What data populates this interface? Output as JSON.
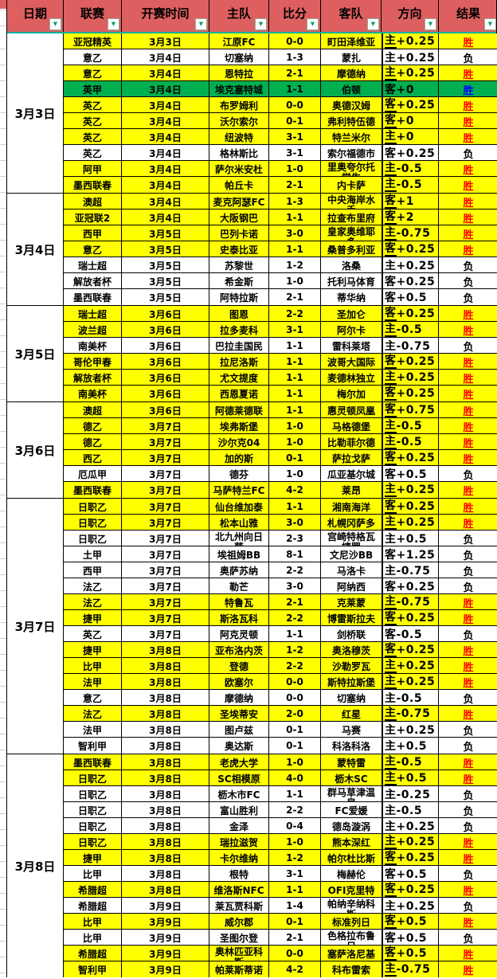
{
  "header": {
    "columns": [
      {
        "key": "date",
        "label": "日期"
      },
      {
        "key": "league",
        "label": "联赛"
      },
      {
        "key": "kickoff-time",
        "label": "开赛时间"
      },
      {
        "key": "home-team",
        "label": "主队"
      },
      {
        "key": "score",
        "label": "比分"
      },
      {
        "key": "away-team",
        "label": "客队"
      },
      {
        "key": "direction",
        "label": "方向"
      },
      {
        "key": "result",
        "label": "结果"
      }
    ]
  },
  "icons": {
    "filter_arrow": "▼"
  },
  "colors": {
    "header_bg": "#de5f5f",
    "win_row_bg": "#ffff00",
    "lose_row_bg": "#ffffff",
    "special_row_bg": "#00b050",
    "win_text": "#ff0000",
    "special_win_text": "#0000ff",
    "lose_text": "#000000",
    "header_divider": "#00b0a0"
  },
  "groups": [
    {
      "date": "3月3日",
      "rows": [
        {
          "league": "亚冠精英",
          "time": "3月3日",
          "home": "江原FC",
          "score": "0-0",
          "away": "町田泽维亚",
          "dir": "主+0.25",
          "result": "胜",
          "bg": "y"
        },
        {
          "league": "意乙",
          "time": "3月4日",
          "home": "切塞纳",
          "score": "1-3",
          "away": "蒙扎",
          "dir": "主+0.25",
          "result": "负",
          "bg": "w"
        },
        {
          "league": "意乙",
          "time": "3月4日",
          "home": "恩特拉",
          "score": "2-1",
          "away": "摩德纳",
          "dir": "主+0.25",
          "result": "胜",
          "bg": "y"
        },
        {
          "league": "英甲",
          "time": "3月4日",
          "home": "埃克塞特城",
          "score": "1-1",
          "away": "伯顿",
          "dir": "客+0",
          "result": "胜",
          "bg": "g"
        },
        {
          "league": "英乙",
          "time": "3月4日",
          "home": "布罗姆利",
          "score": "0-0",
          "away": "奥德汉姆",
          "dir": "客+0.25",
          "result": "胜",
          "bg": "y"
        },
        {
          "league": "英乙",
          "time": "3月4日",
          "home": "沃尔索尔",
          "score": "0-1",
          "away": "弗利特伍德",
          "dir": "客+0",
          "result": "胜",
          "bg": "y"
        },
        {
          "league": "英乙",
          "time": "3月4日",
          "home": "纽波特",
          "score": "3-1",
          "away": "特兰米尔",
          "dir": "主+0",
          "result": "胜",
          "bg": "y"
        },
        {
          "league": "英乙",
          "time": "3月4日",
          "home": "格林斯比",
          "score": "3-1",
          "away": "索尔福德市",
          "dir": "客+0.25",
          "result": "负",
          "bg": "w"
        },
        {
          "league": "阿甲",
          "time": "3月4日",
          "home": "萨尔米安杜",
          "score": "1-0",
          "away": "里奥夸尔托学生",
          "dir": "主-0.5",
          "result": "胜",
          "bg": "y"
        },
        {
          "league": "墨西联春",
          "time": "3月4日",
          "home": "帕丘卡",
          "score": "2-1",
          "away": "内卡萨",
          "dir": "主-0.5",
          "result": "胜",
          "bg": "y"
        }
      ]
    },
    {
      "date": "3月4日",
      "rows": [
        {
          "league": "澳超",
          "time": "3月4日",
          "home": "麦克阿瑟FC",
          "score": "1-3",
          "away": "中央海岸水手",
          "dir": "客+1",
          "result": "胜",
          "bg": "y"
        },
        {
          "league": "亚冠联2",
          "time": "3月4日",
          "home": "大阪钢巴",
          "score": "1-1",
          "away": "拉查布里府",
          "dir": "客+2",
          "result": "胜",
          "bg": "y"
        },
        {
          "league": "西甲",
          "time": "3月5日",
          "home": "巴列卡诺",
          "score": "3-0",
          "away": "皇家奥维耶多",
          "dir": "主-0.75",
          "result": "胜",
          "bg": "y"
        },
        {
          "league": "意乙",
          "time": "3月5日",
          "home": "史泰比亚",
          "score": "1-1",
          "away": "桑普多利亚",
          "dir": "客+0.25",
          "result": "胜",
          "bg": "y"
        },
        {
          "league": "瑞士超",
          "time": "3月5日",
          "home": "苏黎世",
          "score": "1-2",
          "away": "洛桑",
          "dir": "主+0.25",
          "result": "负",
          "bg": "w"
        },
        {
          "league": "解放者杯",
          "time": "3月5日",
          "home": "希金斯",
          "score": "1-0",
          "away": "托利马体育",
          "dir": "客+0.25",
          "result": "负",
          "bg": "w"
        },
        {
          "league": "墨西联春",
          "time": "3月5日",
          "home": "阿特拉斯",
          "score": "2-1",
          "away": "蒂华纳",
          "dir": "客+0.5",
          "result": "负",
          "bg": "w"
        }
      ]
    },
    {
      "date": "3月5日",
      "rows": [
        {
          "league": "瑞士超",
          "time": "3月6日",
          "home": "图恩",
          "score": "2-2",
          "away": "圣加仑",
          "dir": "客+0.25",
          "result": "胜",
          "bg": "y"
        },
        {
          "league": "波兰超",
          "time": "3月6日",
          "home": "拉多麦科",
          "score": "3-1",
          "away": "阿尔卡",
          "dir": "主-0.5",
          "result": "胜",
          "bg": "y"
        },
        {
          "league": "南美杯",
          "time": "3月6日",
          "home": "巴拉圭国民",
          "score": "1-1",
          "away": "雷科莱塔",
          "dir": "主-0.75",
          "result": "负",
          "bg": "w"
        },
        {
          "league": "哥伦甲春",
          "time": "3月6日",
          "home": "拉尼洛斯",
          "score": "1-1",
          "away": "波哥大国际",
          "dir": "客+0.25",
          "result": "胜",
          "bg": "y"
        },
        {
          "league": "解放者杯",
          "time": "3月6日",
          "home": "尤文提度",
          "score": "1-1",
          "away": "麦德林独立",
          "dir": "主+0.25",
          "result": "胜",
          "bg": "y"
        },
        {
          "league": "南美杯",
          "time": "3月6日",
          "home": "西恩夏诺",
          "score": "1-1",
          "away": "梅尔加",
          "dir": "客+0.25",
          "result": "胜",
          "bg": "y"
        }
      ]
    },
    {
      "date": "3月6日",
      "rows": [
        {
          "league": "澳超",
          "time": "3月6日",
          "home": "阿德莱德联",
          "score": "1-1",
          "away": "惠灵顿凤凰",
          "dir": "客+0.75",
          "result": "胜",
          "bg": "y"
        },
        {
          "league": "德乙",
          "time": "3月7日",
          "home": "埃弗斯堡",
          "score": "1-0",
          "away": "马格德堡",
          "dir": "主-0.5",
          "result": "胜",
          "bg": "y"
        },
        {
          "league": "德乙",
          "time": "3月7日",
          "home": "沙尔克04",
          "score": "1-0",
          "away": "比勒菲尔德",
          "dir": "主-0.5",
          "result": "胜",
          "bg": "y"
        },
        {
          "league": "西乙",
          "time": "3月7日",
          "home": "加的斯",
          "score": "0-1",
          "away": "萨拉戈萨",
          "dir": "客+0.25",
          "result": "胜",
          "bg": "y"
        },
        {
          "league": "厄瓜甲",
          "time": "3月7日",
          "home": "德芬",
          "score": "1-0",
          "away": "瓜亚基尔城",
          "dir": "客+0.5",
          "result": "负",
          "bg": "w"
        },
        {
          "league": "墨西联春",
          "time": "3月7日",
          "home": "马萨特兰FC",
          "score": "4-2",
          "away": "莱昂",
          "dir": "主+0.25",
          "result": "胜",
          "bg": "y"
        }
      ]
    },
    {
      "date": "3月7日",
      "rows": [
        {
          "league": "日职乙",
          "time": "3月7日",
          "home": "仙台维加泰",
          "score": "1-1",
          "away": "湘南海洋",
          "dir": "客+0.25",
          "result": "胜",
          "bg": "y"
        },
        {
          "league": "日职乙",
          "time": "3月7日",
          "home": "松本山雅",
          "score": "3-0",
          "away": "札幌冈萨多",
          "dir": "主+0.25",
          "result": "胜",
          "bg": "y"
        },
        {
          "league": "日职乙",
          "time": "3月7日",
          "home": "北九州向日葵",
          "score": "2-3",
          "away": "宫崎特格瓦捷罗",
          "dir": "主+0.5",
          "result": "负",
          "bg": "w"
        },
        {
          "league": "土甲",
          "time": "3月7日",
          "home": "埃祖姆BB",
          "score": "8-1",
          "away": "文尼沙BB",
          "dir": "客+1.25",
          "result": "负",
          "bg": "w"
        },
        {
          "league": "西甲",
          "time": "3月7日",
          "home": "奥萨苏纳",
          "score": "2-2",
          "away": "马洛卡",
          "dir": "主-0.75",
          "result": "负",
          "bg": "w"
        },
        {
          "league": "法乙",
          "time": "3月7日",
          "home": "勒芒",
          "score": "3-0",
          "away": "阿纳西",
          "dir": "客+0.25",
          "result": "负",
          "bg": "w"
        },
        {
          "league": "法乙",
          "time": "3月7日",
          "home": "特鲁瓦",
          "score": "2-1",
          "away": "克莱蒙",
          "dir": "主-0.75",
          "result": "胜",
          "bg": "y"
        },
        {
          "league": "捷甲",
          "time": "3月7日",
          "home": "斯洛瓦科",
          "score": "2-2",
          "away": "博雷斯拉夫",
          "dir": "客+0.25",
          "result": "胜",
          "bg": "y"
        },
        {
          "league": "英乙",
          "time": "3月7日",
          "home": "阿克灵顿",
          "score": "1-1",
          "away": "剑桥联",
          "dir": "客-0.5",
          "result": "负",
          "bg": "w"
        },
        {
          "league": "捷甲",
          "time": "3月8日",
          "home": "亚布洛内茨",
          "score": "1-2",
          "away": "奥洛穆茨",
          "dir": "客+0.25",
          "result": "胜",
          "bg": "y"
        },
        {
          "league": "比甲",
          "time": "3月8日",
          "home": "登德",
          "score": "2-2",
          "away": "沙勒罗瓦",
          "dir": "主+0.25",
          "result": "胜",
          "bg": "y"
        },
        {
          "league": "法甲",
          "time": "3月8日",
          "home": "欧塞尔",
          "score": "0-0",
          "away": "斯特拉斯堡",
          "dir": "主+0.25",
          "result": "胜",
          "bg": "y"
        },
        {
          "league": "意乙",
          "time": "3月8日",
          "home": "摩德纳",
          "score": "0-0",
          "away": "切塞纳",
          "dir": "主-0.5",
          "result": "负",
          "bg": "w"
        },
        {
          "league": "法乙",
          "time": "3月8日",
          "home": "圣埃蒂安",
          "score": "2-0",
          "away": "红星",
          "dir": "主-0.75",
          "result": "胜",
          "bg": "y"
        },
        {
          "league": "法甲",
          "time": "3月8日",
          "home": "图卢兹",
          "score": "0-1",
          "away": "马赛",
          "dir": "主+0.25",
          "result": "负",
          "bg": "w"
        },
        {
          "league": "智利甲",
          "time": "3月8日",
          "home": "奥达斯",
          "score": "0-1",
          "away": "科洛科洛",
          "dir": "主+0.5",
          "result": "负",
          "bg": "w"
        }
      ]
    },
    {
      "date": "3月8日",
      "rows": [
        {
          "league": "墨西联春",
          "time": "3月8日",
          "home": "老虎大学",
          "score": "1-0",
          "away": "蒙特雷",
          "dir": "主-0.5",
          "result": "胜",
          "bg": "y"
        },
        {
          "league": "日职乙",
          "time": "3月8日",
          "home": "SC相模原",
          "score": "4-0",
          "away": "枥木SC",
          "dir": "主+0.5",
          "result": "胜",
          "bg": "y"
        },
        {
          "league": "日职乙",
          "time": "3月8日",
          "home": "枥木市FC",
          "score": "1-1",
          "away": "群马草津温泉",
          "dir": "主-0.25",
          "result": "负",
          "bg": "w"
        },
        {
          "league": "日职乙",
          "time": "3月8日",
          "home": "富山胜利",
          "score": "2-2",
          "away": "FC爱媛",
          "dir": "主-0.5",
          "result": "负",
          "bg": "w"
        },
        {
          "league": "日职乙",
          "time": "3月8日",
          "home": "金泽",
          "score": "0-4",
          "away": "德岛漩涡",
          "dir": "主+0.25",
          "result": "负",
          "bg": "w"
        },
        {
          "league": "日职乙",
          "time": "3月8日",
          "home": "瑞拉滋贺",
          "score": "1-0",
          "away": "熊本深红",
          "dir": "主+0.25",
          "result": "胜",
          "bg": "y"
        },
        {
          "league": "捷甲",
          "time": "3月8日",
          "home": "卡尔维纳",
          "score": "1-2",
          "away": "帕尔杜比斯",
          "dir": "客+0.25",
          "result": "胜",
          "bg": "y"
        },
        {
          "league": "比甲",
          "time": "3月8日",
          "home": "根特",
          "score": "3-1",
          "away": "梅赫伦",
          "dir": "客+0.5",
          "result": "负",
          "bg": "w"
        },
        {
          "league": "希腊超",
          "time": "3月8日",
          "home": "维洛斯NFC",
          "score": "1-1",
          "away": "OFI克里特",
          "dir": "客+0.25",
          "result": "胜",
          "bg": "y"
        },
        {
          "league": "希腊超",
          "time": "3月9日",
          "home": "莱瓦贾科斯",
          "score": "1-4",
          "away": "帕纳辛纳科斯",
          "dir": "主+0.25",
          "result": "负",
          "bg": "w"
        },
        {
          "league": "比甲",
          "time": "3月9日",
          "home": "威尔郡",
          "score": "0-1",
          "away": "标准列日",
          "dir": "客+0.5",
          "result": "胜",
          "bg": "y"
        },
        {
          "league": "比甲",
          "time": "3月9日",
          "home": "圣图尔登",
          "score": "2-1",
          "away": "色格拉布鲁日",
          "dir": "客+0.5",
          "result": "负",
          "bg": "w"
        },
        {
          "league": "希腊超",
          "time": "3月9日",
          "home": "奥林匹亚科斯",
          "score": "0-0",
          "away": "塞萨洛尼基",
          "dir": "客+0.5",
          "result": "胜",
          "bg": "y"
        },
        {
          "league": "智利甲",
          "time": "3月9日",
          "home": "帕莱斯蒂诺",
          "score": "4-2",
          "away": "科布雷索",
          "dir": "主-0.75",
          "result": "胜",
          "bg": "y"
        }
      ]
    }
  ]
}
